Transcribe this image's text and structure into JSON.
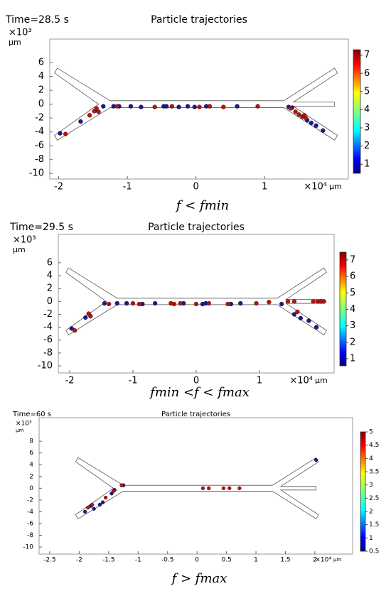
{
  "chart_data": [
    {
      "type": "scatter",
      "time_label": "Time=28.5 s",
      "title": "Particle trajectories",
      "y_multiplier": "×10³",
      "y_unit": "µm",
      "x_multiplier": "×10⁴",
      "x_unit": "µm",
      "caption": "f < fmin",
      "xlim": [
        -2.13,
        2.22
      ],
      "ylim": [
        -10.8,
        9.4
      ],
      "xticks": [
        -2,
        -1,
        0,
        1
      ],
      "yticks": [
        6,
        4,
        2,
        0,
        -2,
        -4,
        -6,
        -8,
        -10
      ],
      "colorbar_lim": [
        0.5,
        7.3
      ],
      "colorbar_ticks": [
        7,
        6,
        5,
        4,
        3,
        2,
        1
      ],
      "series": [
        {
          "color": "#1a1a8c",
          "x": [
            -1.98,
            -1.68,
            -1.35,
            -1.2,
            -1.12,
            -0.95,
            -0.8,
            -0.47,
            -0.43,
            -0.25,
            -0.12,
            -0.02,
            0.15,
            0.6,
            1.35,
            1.4,
            1.62,
            1.68,
            1.75,
            1.85
          ],
          "y": [
            -4.2,
            -2.5,
            -0.3,
            -0.3,
            -0.3,
            -0.3,
            -0.4,
            -0.3,
            -0.3,
            -0.4,
            -0.3,
            -0.4,
            -0.3,
            -0.3,
            -0.4,
            -0.5,
            -2.3,
            -2.7,
            -3.1,
            -3.8
          ]
        },
        {
          "color": "#b3140f",
          "x": [
            -1.9,
            -1.55,
            -1.48,
            -1.42,
            -1.45,
            -1.15,
            -0.6,
            -0.35,
            0.05,
            0.2,
            0.4,
            0.9,
            1.38,
            1.45,
            1.5,
            1.55,
            1.6,
            1.58
          ],
          "y": [
            -4.3,
            -1.6,
            -1.0,
            -1.1,
            -0.6,
            -0.3,
            -0.4,
            -0.3,
            -0.4,
            -0.3,
            -0.4,
            -0.3,
            -0.6,
            -1.1,
            -1.5,
            -1.8,
            -2.0,
            -1.6
          ]
        }
      ]
    },
    {
      "type": "scatter",
      "time_label": "Time=29.5 s",
      "title": "Particle trajectories",
      "y_multiplier": "×10³",
      "y_unit": "µm",
      "x_multiplier": "×10⁴",
      "x_unit": "µm",
      "caption": "fmin <f < fmax",
      "xlim": [
        -2.18,
        2.18
      ],
      "ylim": [
        -11.1,
        10.4
      ],
      "xticks": [
        -2,
        -1,
        0,
        1
      ],
      "yticks": [
        6,
        4,
        2,
        0,
        -2,
        -4,
        -6,
        -8,
        -10
      ],
      "colorbar_lim": [
        0.57,
        7.47
      ],
      "colorbar_ticks": [
        7,
        6,
        5,
        4,
        3,
        2,
        1
      ],
      "series": [
        {
          "color": "#1a1a8c",
          "x": [
            -1.97,
            -1.75,
            -1.45,
            -1.25,
            -1.1,
            -0.85,
            -0.65,
            -0.2,
            0.1,
            0.15,
            0.55,
            0.7,
            1.35,
            1.55,
            1.65,
            1.78,
            1.9
          ],
          "y": [
            -4.2,
            -2.5,
            -0.3,
            -0.3,
            -0.3,
            -0.4,
            -0.3,
            -0.3,
            -0.4,
            -0.3,
            -0.4,
            -0.3,
            -0.4,
            -2.0,
            -2.6,
            -3.0,
            -4.0
          ]
        },
        {
          "color": "#b3140f",
          "x": [
            -1.92,
            -1.7,
            -1.67,
            -1.38,
            -1.0,
            -0.9,
            -0.4,
            -0.35,
            -0.25,
            0.0,
            0.2,
            0.5,
            0.95,
            1.15,
            1.45,
            1.55,
            1.85,
            1.92,
            1.97,
            2.02,
            1.6
          ],
          "y": [
            -4.5,
            -1.9,
            -2.3,
            -0.4,
            -0.3,
            -0.4,
            -0.3,
            -0.4,
            -0.3,
            -0.4,
            -0.3,
            -0.4,
            -0.3,
            -0.1,
            0,
            0,
            0,
            0,
            0,
            0,
            -1.6
          ]
        }
      ]
    },
    {
      "type": "scatter",
      "time_label": "Time=60 s",
      "title": "Particle trajectories",
      "y_multiplier": "×10³",
      "y_unit": "µm",
      "x_multiplier": "×10⁴",
      "x_unit": "µm",
      "caption": "f > fmax",
      "xlim": [
        -2.68,
        2.64
      ],
      "ylim": [
        -11.2,
        12.0
      ],
      "xticks": [
        -2.5,
        -2,
        -1.5,
        -1,
        -0.5,
        0,
        0.5,
        1,
        1.5,
        2
      ],
      "yticks": [
        8,
        6,
        4,
        2,
        0,
        -2,
        -4,
        -6,
        -8,
        -10
      ],
      "colorbar_lim": [
        0.5,
        5
      ],
      "colorbar_ticks": [
        5,
        4.5,
        4,
        3.5,
        3,
        2.5,
        2,
        1.5,
        1,
        0.5
      ],
      "series": [
        {
          "color": "#1a1a8c",
          "x": [
            -1.9,
            -1.8,
            -1.75,
            -1.65,
            -1.6,
            -1.45,
            -1.4,
            -1.25,
            2.02
          ],
          "y": [
            -4.0,
            -3.0,
            -3.5,
            -2.8,
            -2.4,
            -0.9,
            -0.3,
            0.5,
            4.8
          ]
        },
        {
          "color": "#b3140f",
          "x": [
            -1.85,
            -1.78,
            -1.55,
            -1.42,
            -1.28,
            0.1,
            0.2,
            0.45,
            0.55,
            0.72
          ],
          "y": [
            -3.3,
            -2.8,
            -1.6,
            -0.5,
            0.5,
            0,
            0,
            0,
            0,
            0
          ]
        }
      ]
    }
  ]
}
